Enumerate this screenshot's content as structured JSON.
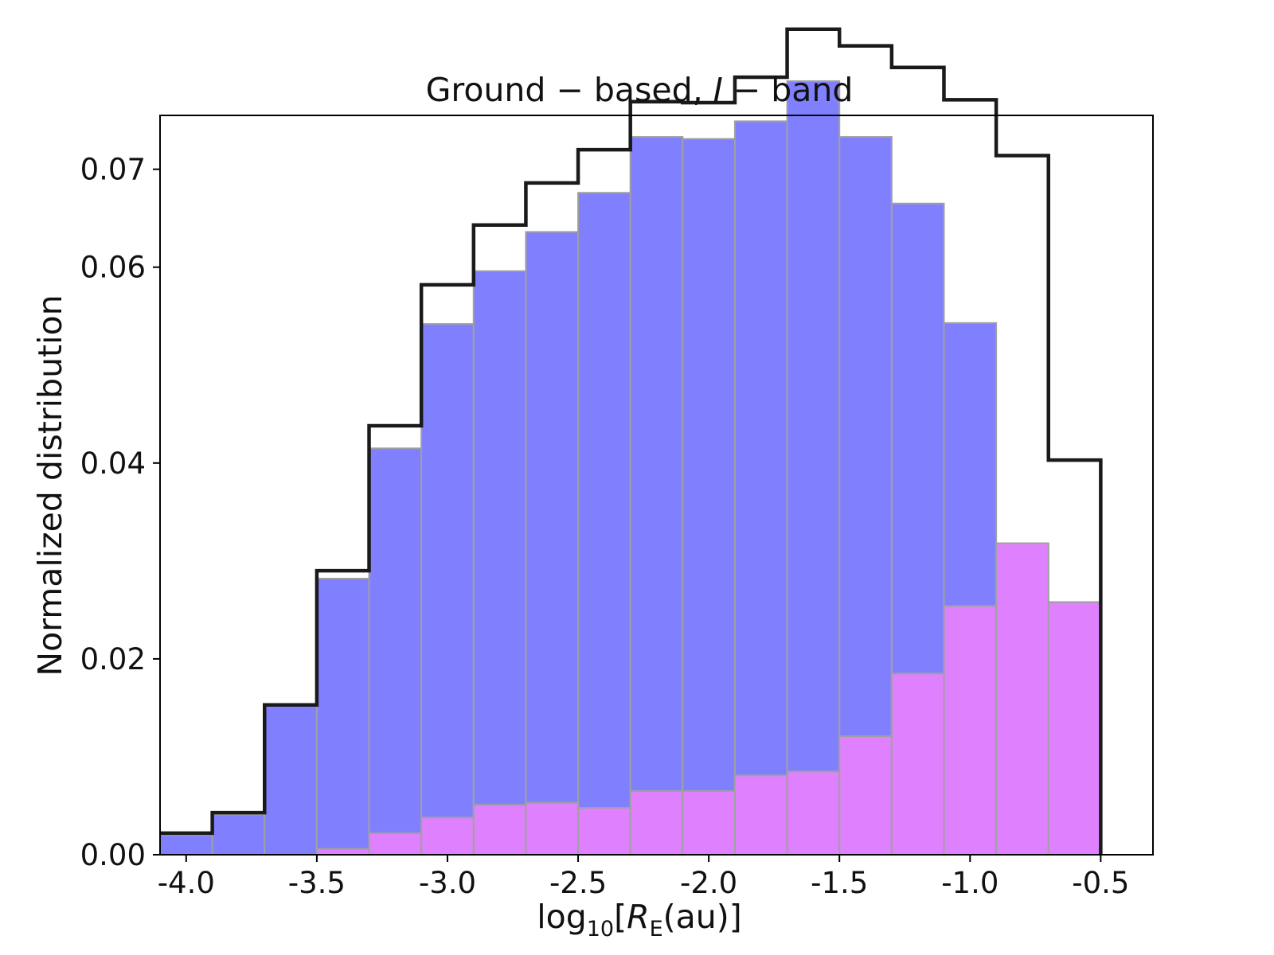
{
  "chart_data": {
    "type": "bar",
    "title_parts": [
      "Ground − based, ",
      "I",
      " − band"
    ],
    "title": "Ground − based, I − band",
    "xlabel_parts": [
      "log",
      "10",
      "[",
      "R",
      "E",
      "(au)]"
    ],
    "xlabel": "log10[RE(au)]",
    "ylabel": "Normalized distribution",
    "xlim": [
      -4.1,
      -0.3
    ],
    "ylim": [
      0.0,
      0.0755
    ],
    "xticks": [
      -4.0,
      -3.5,
      -3.0,
      -2.5,
      -2.0,
      -1.5,
      -1.0,
      -0.5
    ],
    "xtick_labels": [
      "-4.0",
      "-3.5",
      "-3.0",
      "-2.5",
      "-2.0",
      "-1.5",
      "-1.0",
      "-0.5"
    ],
    "yticks": [
      0.0,
      0.02,
      0.04,
      0.06,
      0.07
    ],
    "ytick_labels": [
      "0.00",
      "0.02",
      "0.04",
      "0.06",
      "0.07"
    ],
    "bin_edges": [
      -4.1,
      -3.9,
      -3.7,
      -3.5,
      -3.3,
      -3.1,
      -2.9,
      -2.7,
      -2.5,
      -2.3,
      -2.1,
      -1.9,
      -1.7,
      -1.5,
      -1.3,
      -1.1,
      -0.9,
      -0.7,
      -0.5
    ],
    "series": [
      {
        "name": "blue",
        "style": "filled",
        "color": "#8080ff",
        "values": [
          0.002,
          0.0041,
          0.0153,
          0.0282,
          0.0415,
          0.0542,
          0.0596,
          0.0636,
          0.0676,
          0.0733,
          0.0731,
          0.0749,
          0.079,
          0.0733,
          0.0665,
          0.0543,
          0.0318,
          0.0258
        ]
      },
      {
        "name": "magenta",
        "style": "filled",
        "color": "#ff80ff",
        "values": [
          0.0,
          0.0,
          0.0,
          0.0006,
          0.0022,
          0.0038,
          0.0051,
          0.0053,
          0.0048,
          0.0065,
          0.0065,
          0.0081,
          0.0085,
          0.0121,
          0.0185,
          0.0254,
          0.0318,
          0.0258
        ]
      },
      {
        "name": "total",
        "style": "step",
        "color": "#1a1a1a",
        "values": [
          0.0022,
          0.0043,
          0.0153,
          0.029,
          0.0438,
          0.0582,
          0.0643,
          0.0686,
          0.072,
          0.0769,
          0.0768,
          0.0794,
          0.0843,
          0.0826,
          0.0804,
          0.0771,
          0.0714,
          0.0403
        ]
      }
    ]
  }
}
